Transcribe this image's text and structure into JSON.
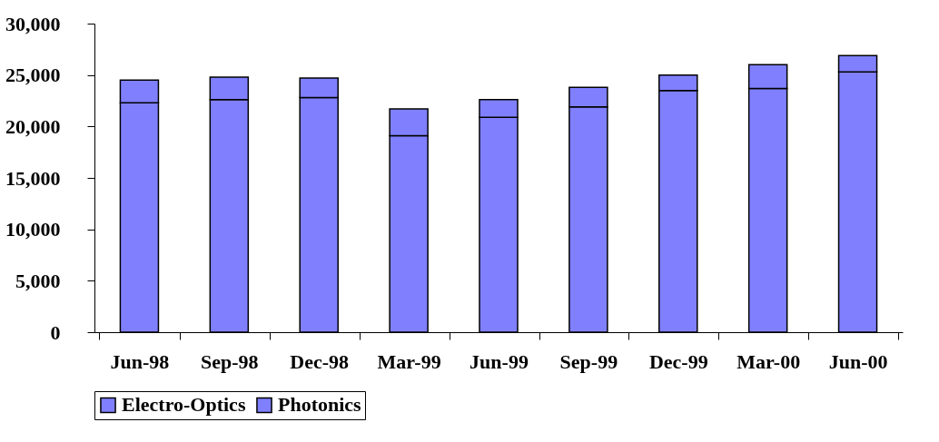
{
  "chart_data": {
    "type": "bar",
    "stacked": true,
    "categories": [
      "Jun-98",
      "Sep-98",
      "Dec-98",
      "Mar-99",
      "Jun-99",
      "Sep-99",
      "Dec-99",
      "Mar-00",
      "Jun-00"
    ],
    "series": [
      {
        "name": "Electro-Optics",
        "color": "#8080ff",
        "values": [
          22300,
          22600,
          22800,
          19100,
          20900,
          21900,
          23500,
          23700,
          25300
        ]
      },
      {
        "name": "Photonics",
        "color": "#8080ff",
        "values": [
          2200,
          2200,
          1900,
          2600,
          1700,
          1900,
          1500,
          2300,
          1600
        ]
      }
    ],
    "ylim": [
      0,
      30000
    ],
    "yticks": [
      0,
      {
        "value": 5000,
        "label": "5,000"
      },
      {
        "value": 10000,
        "label": "10,000"
      },
      {
        "value": 15000,
        "label": "15,000"
      },
      {
        "value": 20000,
        "label": "20,000"
      },
      {
        "value": 25000,
        "label": "25,000"
      },
      {
        "value": 30000,
        "label": "30,000"
      }
    ],
    "grid": false,
    "legend": "bottom"
  }
}
